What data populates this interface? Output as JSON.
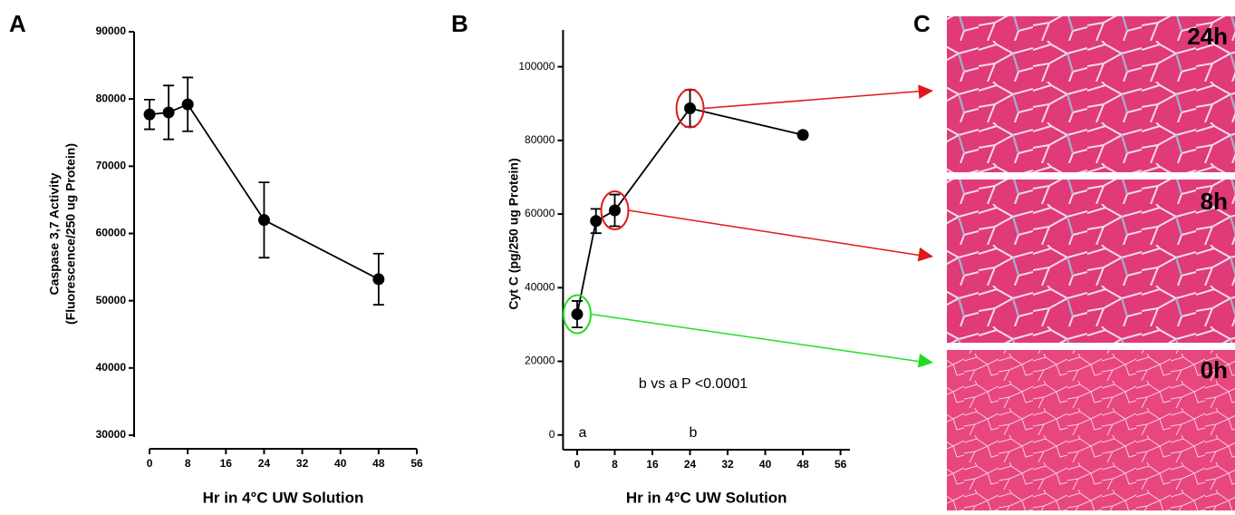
{
  "chart_data": [
    {
      "type": "line",
      "panel": "A",
      "ylabel": [
        "Caspase 3,7 Activity",
        "(Fluorescence/250 ug Protein)"
      ],
      "xlabel": "Hr in 4°C UW Solution",
      "x": [
        0,
        4,
        8,
        24,
        48
      ],
      "series": [
        {
          "color": "#000000",
          "values": [
            77700,
            78000,
            79200,
            62000,
            53200
          ],
          "errors": [
            2200,
            4000,
            4000,
            5600,
            3800
          ]
        }
      ],
      "xlim": [
        -2,
        56
      ],
      "xticks": [
        0,
        8,
        16,
        24,
        32,
        40,
        48,
        56
      ],
      "ylim": [
        30000,
        90000
      ],
      "yticks": [
        30000,
        40000,
        50000,
        60000,
        70000,
        80000,
        90000
      ]
    },
    {
      "type": "line",
      "panel": "B",
      "ylabel": [
        "Cyt C (pg/250 ug Protein)"
      ],
      "xlabel": "Hr in 4°C UW Solution",
      "x": [
        0,
        4,
        8,
        24,
        48
      ],
      "series": [
        {
          "color": "#000000",
          "values": [
            32800,
            58100,
            61000,
            88700,
            81500
          ],
          "errors": [
            3600,
            3300,
            4300,
            5000,
            null
          ]
        }
      ],
      "xlim": [
        -3,
        58
      ],
      "xticks": [
        0,
        8,
        16,
        24,
        32,
        40,
        48,
        56
      ],
      "ylim": [
        -4000,
        110000
      ],
      "yticks": [
        0,
        20000,
        40000,
        60000,
        80000,
        100000
      ],
      "annotations": [
        "b vs a  P <0.0001",
        "a",
        "b"
      ]
    }
  ],
  "panel_c": {
    "label": "C",
    "images": [
      "24h",
      "8h",
      "0h"
    ]
  }
}
